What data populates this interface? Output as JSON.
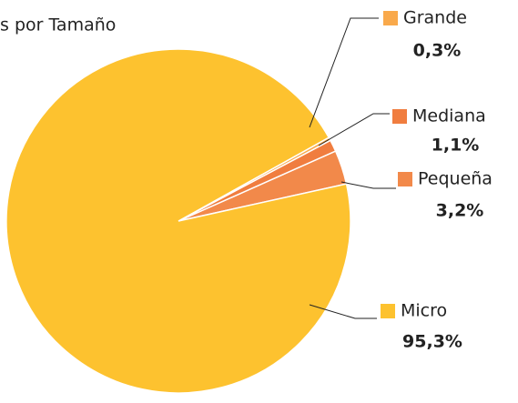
{
  "chart_data": {
    "type": "pie",
    "title": "s por Tamaño",
    "categories": [
      "Pequeña",
      "Mediana",
      "Grande",
      "Micro"
    ],
    "values": [
      3.2,
      1.1,
      0.3,
      95.3
    ],
    "value_labels": [
      "3,2%",
      "1,1%",
      "0,3%",
      "95,3%"
    ],
    "colors": [
      "#F2894A",
      "#F07D3F",
      "#F9A94B",
      "#FDC22F"
    ]
  }
}
